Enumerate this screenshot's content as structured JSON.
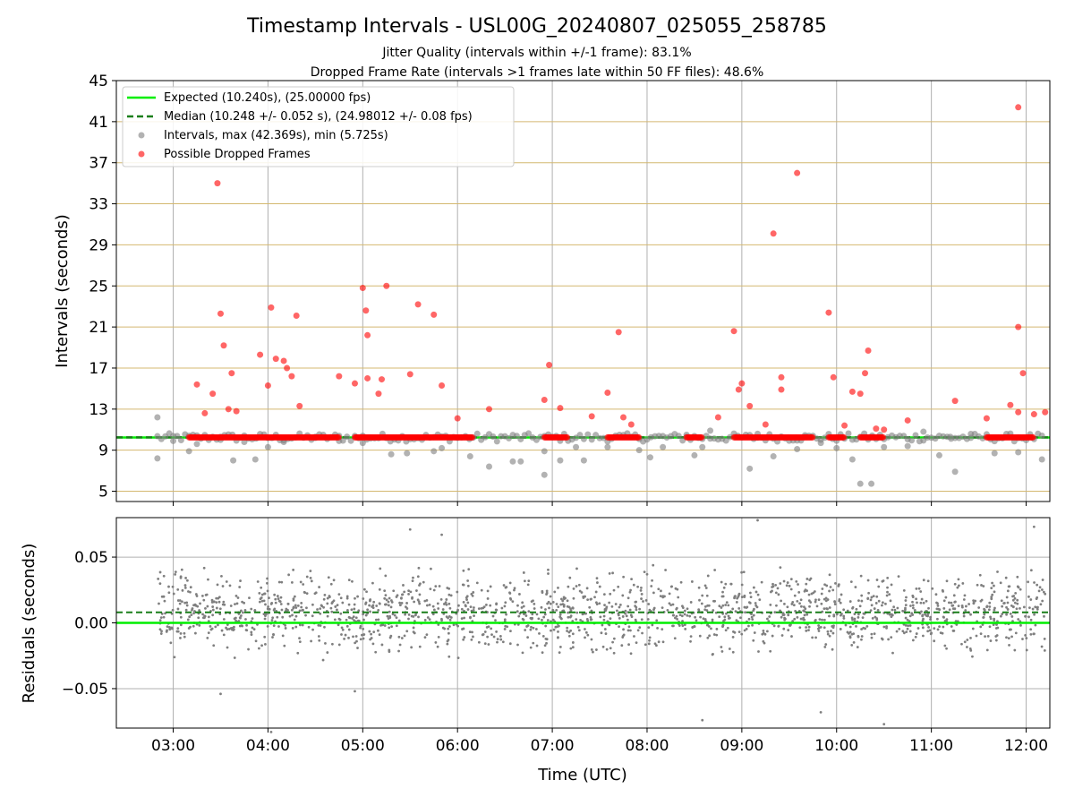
{
  "colors": {
    "expected": "#00ee00",
    "median": "#1a7f1a",
    "intervals": "#7f7f7f",
    "dropped": "#ff0000",
    "hgrid_top": "#d4b870",
    "grid": "#b0b0b0"
  },
  "chart_data": [
    {
      "type": "scatter",
      "title": "Timestamp Intervals - USL00G_20240807_025055_258785",
      "subtitle_lines": [
        "Jitter Quality (intervals within +/-1 frame): 83.1%",
        "Dropped Frame Rate (intervals >1 frames late within 50 FF files): 48.6%"
      ],
      "xlabel": "",
      "ylabel": "Intervals (seconds)",
      "xlim": [
        "02:24",
        "12:15"
      ],
      "ylim": [
        4,
        45
      ],
      "yticks": [
        5,
        9,
        13,
        17,
        21,
        25,
        29,
        33,
        37,
        41,
        45
      ],
      "xticks": [
        "03:00",
        "04:00",
        "05:00",
        "06:00",
        "07:00",
        "08:00",
        "09:00",
        "10:00",
        "11:00",
        "12:00"
      ],
      "grid": true,
      "legend_position": "upper-left",
      "legend": [
        "Expected (10.240s), (25.00000 fps)",
        "Median (10.248 +/- 0.052 s), (24.98012 +/- 0.08 fps)",
        "Intervals, max (42.369s), min (5.725s)",
        "Possible Dropped Frames"
      ],
      "reference_lines": {
        "expected": 10.24,
        "median": 10.248
      },
      "series": [
        {
          "name": "Intervals, max (42.369s), min (5.725s)",
          "points": [
            [
              "02:50",
              12.2
            ],
            [
              "02:50",
              8.2
            ],
            [
              "03:00",
              9.9
            ],
            [
              "03:10",
              8.9
            ],
            [
              "03:15",
              9.6
            ],
            [
              "03:30",
              10.3
            ],
            [
              "03:38",
              8.0
            ],
            [
              "03:45",
              9.8
            ],
            [
              "03:52",
              8.1
            ],
            [
              "04:00",
              9.3
            ],
            [
              "04:10",
              9.8
            ],
            [
              "04:30",
              10.3
            ],
            [
              "04:45",
              9.9
            ],
            [
              "05:00",
              9.7
            ],
            [
              "05:18",
              8.6
            ],
            [
              "05:28",
              8.7
            ],
            [
              "05:45",
              8.9
            ],
            [
              "05:50",
              9.2
            ],
            [
              "06:08",
              8.4
            ],
            [
              "06:20",
              7.4
            ],
            [
              "06:35",
              7.9
            ],
            [
              "06:40",
              7.9
            ],
            [
              "06:55",
              8.9
            ],
            [
              "06:55",
              6.6
            ],
            [
              "07:05",
              8.0
            ],
            [
              "07:15",
              9.3
            ],
            [
              "07:20",
              8.0
            ],
            [
              "07:35",
              9.3
            ],
            [
              "07:55",
              9.0
            ],
            [
              "08:02",
              8.3
            ],
            [
              "08:10",
              9.3
            ],
            [
              "08:25",
              10.5
            ],
            [
              "08:30",
              8.5
            ],
            [
              "08:35",
              9.3
            ],
            [
              "08:40",
              10.9
            ],
            [
              "09:05",
              7.2
            ],
            [
              "09:10",
              10.6
            ],
            [
              "09:20",
              8.4
            ],
            [
              "09:35",
              9.1
            ],
            [
              "09:40",
              10.3
            ],
            [
              "09:50",
              9.7
            ],
            [
              "10:00",
              9.2
            ],
            [
              "10:10",
              8.1
            ],
            [
              "10:15",
              5.73
            ],
            [
              "10:22",
              5.73
            ],
            [
              "10:30",
              9.3
            ],
            [
              "10:45",
              9.4
            ],
            [
              "10:55",
              10.8
            ],
            [
              "11:05",
              8.5
            ],
            [
              "11:12",
              10.3
            ],
            [
              "11:25",
              10.2
            ],
            [
              "11:40",
              8.7
            ],
            [
              "11:55",
              8.8
            ],
            [
              "12:10",
              8.1
            ],
            [
              "11:15",
              6.9
            ]
          ]
        },
        {
          "name": "Possible Dropped Frames",
          "points": [
            [
              "03:28",
              35.0
            ],
            [
              "03:30",
              22.3
            ],
            [
              "03:32",
              19.2
            ],
            [
              "03:37",
              16.5
            ],
            [
              "03:25",
              14.5
            ],
            [
              "03:15",
              15.4
            ],
            [
              "03:20",
              12.6
            ],
            [
              "03:35",
              13.0
            ],
            [
              "03:40",
              12.8
            ],
            [
              "03:55",
              18.3
            ],
            [
              "04:02",
              22.9
            ],
            [
              "04:05",
              17.9
            ],
            [
              "04:10",
              17.7
            ],
            [
              "04:12",
              17.0
            ],
            [
              "04:18",
              22.1
            ],
            [
              "04:15",
              16.2
            ],
            [
              "04:00",
              15.3
            ],
            [
              "04:20",
              13.3
            ],
            [
              "04:45",
              16.2
            ],
            [
              "04:55",
              15.5
            ],
            [
              "05:00",
              24.8
            ],
            [
              "05:02",
              22.6
            ],
            [
              "05:03",
              20.2
            ],
            [
              "05:15",
              25.0
            ],
            [
              "05:12",
              15.9
            ],
            [
              "05:03",
              16.0
            ],
            [
              "05:10",
              14.5
            ],
            [
              "05:30",
              16.4
            ],
            [
              "05:35",
              23.2
            ],
            [
              "05:45",
              22.2
            ],
            [
              "05:50",
              15.3
            ],
            [
              "06:00",
              12.1
            ],
            [
              "06:20",
              13.0
            ],
            [
              "06:55",
              13.9
            ],
            [
              "06:58",
              17.3
            ],
            [
              "07:05",
              13.1
            ],
            [
              "07:25",
              12.3
            ],
            [
              "07:35",
              14.6
            ],
            [
              "07:42",
              20.5
            ],
            [
              "07:45",
              12.2
            ],
            [
              "07:50",
              11.5
            ],
            [
              "08:45",
              12.2
            ],
            [
              "08:55",
              20.6
            ],
            [
              "09:00",
              15.5
            ],
            [
              "08:58",
              14.9
            ],
            [
              "09:05",
              13.3
            ],
            [
              "09:15",
              11.5
            ],
            [
              "09:20",
              30.1
            ],
            [
              "09:25",
              16.1
            ],
            [
              "09:35",
              36.0
            ],
            [
              "09:25",
              14.9
            ],
            [
              "09:55",
              22.4
            ],
            [
              "09:58",
              16.1
            ],
            [
              "10:05",
              11.4
            ],
            [
              "10:10",
              14.7
            ],
            [
              "10:18",
              16.5
            ],
            [
              "10:20",
              18.7
            ],
            [
              "10:15",
              14.5
            ],
            [
              "10:25",
              11.1
            ],
            [
              "10:30",
              11.0
            ],
            [
              "10:45",
              11.9
            ],
            [
              "11:15",
              13.8
            ],
            [
              "11:35",
              12.1
            ],
            [
              "11:50",
              13.4
            ],
            [
              "11:55",
              12.7
            ],
            [
              "11:55",
              42.4
            ],
            [
              "11:55",
              21.0
            ],
            [
              "11:58",
              16.5
            ],
            [
              "12:05",
              12.5
            ],
            [
              "12:12",
              12.7
            ]
          ]
        }
      ],
      "dense_bands": [
        {
          "series": "Intervals, max (42.369s), min (5.725s)",
          "from": "02:50",
          "to": "12:12",
          "y_center": 10.24,
          "spread": 0.4
        },
        {
          "series": "Possible Dropped Frames",
          "from": "03:10",
          "to": "04:45",
          "y": 10.25
        },
        {
          "series": "Possible Dropped Frames",
          "from": "04:55",
          "to": "06:10",
          "y": 10.25
        },
        {
          "series": "Possible Dropped Frames",
          "from": "06:55",
          "to": "07:10",
          "y": 10.25
        },
        {
          "series": "Possible Dropped Frames",
          "from": "07:35",
          "to": "07:55",
          "y": 10.25
        },
        {
          "series": "Possible Dropped Frames",
          "from": "08:25",
          "to": "08:35",
          "y": 10.25
        },
        {
          "series": "Possible Dropped Frames",
          "from": "08:55",
          "to": "09:45",
          "y": 10.25
        },
        {
          "series": "Possible Dropped Frames",
          "from": "09:55",
          "to": "10:05",
          "y": 10.25
        },
        {
          "series": "Possible Dropped Frames",
          "from": "10:15",
          "to": "10:30",
          "y": 10.25
        },
        {
          "series": "Possible Dropped Frames",
          "from": "11:35",
          "to": "12:05",
          "y": 10.25
        }
      ]
    },
    {
      "type": "scatter",
      "title": "",
      "xlabel": "Time (UTC)",
      "ylabel": "Residuals (seconds)",
      "xlim": [
        "02:24",
        "12:15"
      ],
      "ylim": [
        -0.08,
        0.08
      ],
      "yticks": [
        0.05,
        0.0,
        -0.05
      ],
      "ytick_labels": [
        "0.05",
        "0.00",
        "−0.05"
      ],
      "xticks": [
        "03:00",
        "04:00",
        "05:00",
        "06:00",
        "07:00",
        "08:00",
        "09:00",
        "10:00",
        "11:00",
        "12:00"
      ],
      "grid": true,
      "reference_lines": {
        "expected": 0.0,
        "median": 0.008
      },
      "series": [
        {
          "name": "Residuals",
          "from": "02:50",
          "to": "12:12",
          "y_center": 0.008,
          "spread": 0.025,
          "count": 1800,
          "outliers": [
            [
              "03:30",
              -0.054
            ],
            [
              "04:02",
              -0.083
            ],
            [
              "04:55",
              -0.052
            ],
            [
              "05:30",
              0.071
            ],
            [
              "05:50",
              0.067
            ],
            [
              "08:35",
              -0.074
            ],
            [
              "09:10",
              0.078
            ],
            [
              "09:50",
              -0.068
            ],
            [
              "10:30",
              -0.077
            ],
            [
              "12:05",
              0.073
            ]
          ]
        }
      ]
    }
  ]
}
